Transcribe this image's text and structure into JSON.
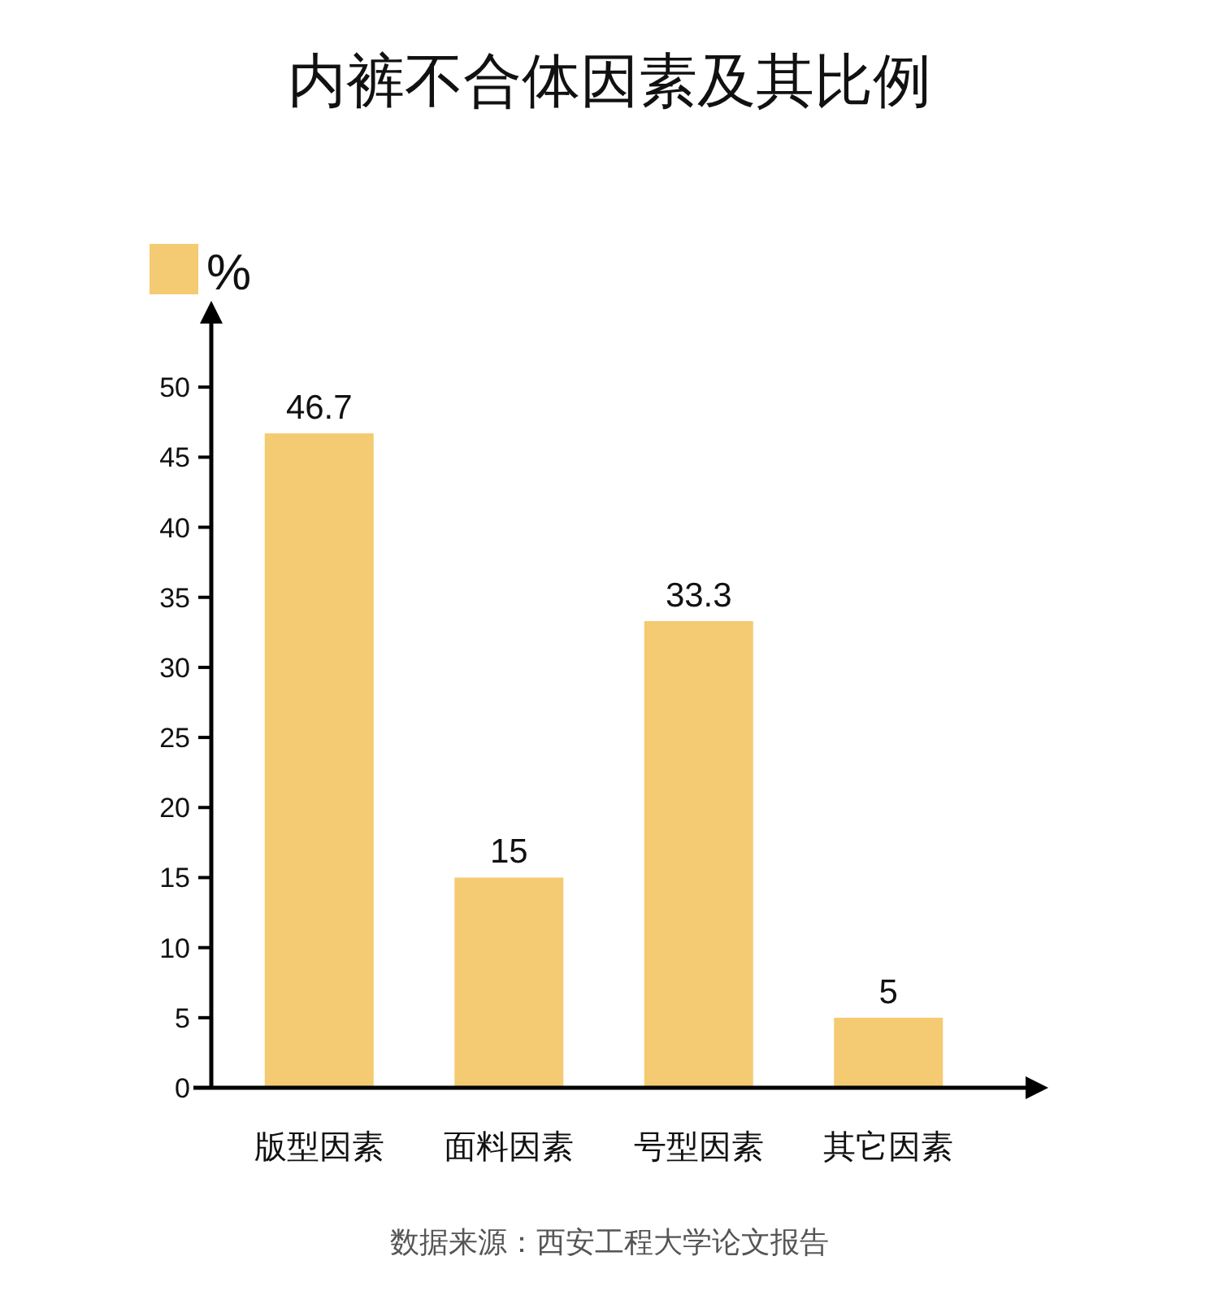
{
  "chart_data": {
    "type": "bar",
    "title": "内裤不合体因素及其比例",
    "categories": [
      "版型因素",
      "面料因素",
      "号型因素",
      "其它因素"
    ],
    "series": [
      {
        "name": "%",
        "color": "#f4cb72",
        "values": [
          46.7,
          15,
          33.3,
          5
        ]
      }
    ],
    "ylim": [
      0,
      55
    ],
    "yticks": [
      0,
      5,
      10,
      15,
      20,
      25,
      30,
      35,
      40,
      45,
      50
    ],
    "data_labels": true,
    "legend": "top left",
    "annotations": [
      "数据来源：西安工程大学论文报告"
    ]
  }
}
